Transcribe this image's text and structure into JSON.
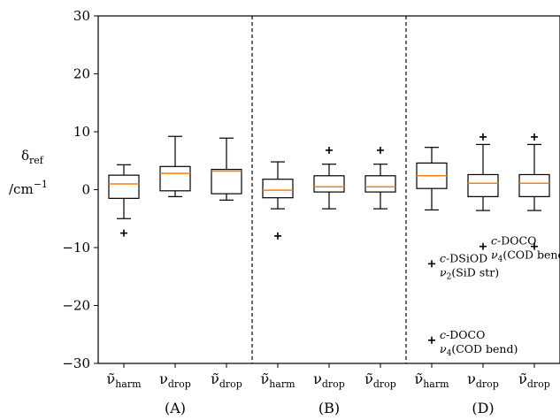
{
  "chart_data": {
    "type": "box",
    "ylabel": "δref /cm⁻¹",
    "ylabel_line1": "δ",
    "ylabel_sub": "ref",
    "ylabel_line2": "/cm",
    "ylabel_sup": "−1",
    "ylim": [
      -30,
      30
    ],
    "yticks": [
      -30,
      -20,
      -10,
      0,
      10,
      20,
      30
    ],
    "ytick_labels": [
      "−30",
      "−20",
      "−10",
      "0",
      "10",
      "20",
      "30"
    ],
    "grid": false,
    "colors": {
      "median": "#ff7f0e",
      "box": "#000000",
      "divider": "#000000"
    },
    "groups": [
      {
        "label": "(A)",
        "boxes": [
          {
            "category": "ν̃harm",
            "base": "ν̃",
            "sub": "harm",
            "whisker_low": -5.0,
            "q1": -1.5,
            "median": 1.0,
            "q3": 2.5,
            "whisker_high": 4.3,
            "outliers": [
              -7.5
            ]
          },
          {
            "category": "νdrop",
            "base": "ν",
            "sub": "drop",
            "whisker_low": -1.2,
            "q1": -0.2,
            "median": 2.8,
            "q3": 4.0,
            "whisker_high": 9.2,
            "outliers": []
          },
          {
            "category": "ν̃drop",
            "base": "ν̃",
            "sub": "drop",
            "whisker_low": -1.8,
            "q1": -0.7,
            "median": 3.2,
            "q3": 3.5,
            "whisker_high": 8.9,
            "outliers": []
          }
        ]
      },
      {
        "label": "(B)",
        "boxes": [
          {
            "category": "ν̃harm",
            "base": "ν̃",
            "sub": "harm",
            "whisker_low": -3.3,
            "q1": -1.4,
            "median": -0.1,
            "q3": 1.8,
            "whisker_high": 4.8,
            "outliers": [
              -8.0
            ]
          },
          {
            "category": "νdrop",
            "base": "ν",
            "sub": "drop",
            "whisker_low": -3.3,
            "q1": -0.4,
            "median": 0.5,
            "q3": 2.4,
            "whisker_high": 4.4,
            "outliers": [
              6.8
            ]
          },
          {
            "category": "ν̃drop",
            "base": "ν̃",
            "sub": "drop",
            "whisker_low": -3.3,
            "q1": -0.4,
            "median": 0.5,
            "q3": 2.4,
            "whisker_high": 4.4,
            "outliers": [
              6.8
            ]
          }
        ]
      },
      {
        "label": "(D)",
        "boxes": [
          {
            "category": "ν̃harm",
            "base": "ν̃",
            "sub": "harm",
            "whisker_low": -3.5,
            "q1": 0.2,
            "median": 2.4,
            "q3": 4.6,
            "whisker_high": 7.3,
            "outliers": [
              -12.8,
              -26.0
            ]
          },
          {
            "category": "νdrop",
            "base": "ν",
            "sub": "drop",
            "whisker_low": -3.6,
            "q1": -1.2,
            "median": 1.1,
            "q3": 2.6,
            "whisker_high": 7.8,
            "outliers": [
              9.1,
              -9.8
            ]
          },
          {
            "category": "ν̃drop",
            "base": "ν̃",
            "sub": "drop",
            "whisker_low": -3.6,
            "q1": -1.2,
            "median": 1.1,
            "q3": 2.6,
            "whisker_high": 7.8,
            "outliers": [
              9.1,
              -9.8
            ]
          }
        ]
      }
    ],
    "annotations": [
      {
        "group": 2,
        "box": 0,
        "y": -12.8,
        "lines": [
          [
            "c",
            "-DSiOD"
          ],
          [
            "ν",
            "2",
            "(SiD str)"
          ]
        ]
      },
      {
        "group": 2,
        "box": 0,
        "y": -26.0,
        "lines": [
          [
            "c",
            "-DOCO"
          ],
          [
            "ν",
            "4",
            "(COD bend)"
          ]
        ]
      },
      {
        "group": 2,
        "box": 1,
        "y": -9.8,
        "lines": [
          [
            "c",
            "-DOCO"
          ],
          [
            "ν",
            "4",
            "(COD bend)"
          ]
        ]
      }
    ]
  }
}
